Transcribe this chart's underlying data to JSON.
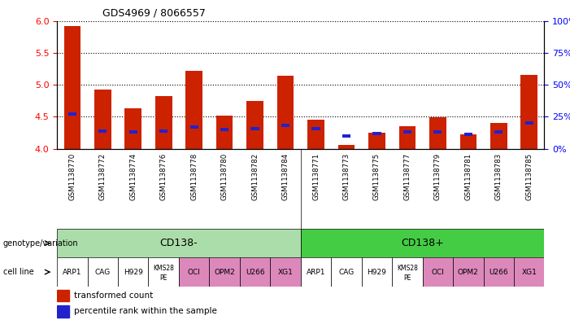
{
  "title": "GDS4969 / 8066557",
  "samples": [
    "GSM1138770",
    "GSM1138772",
    "GSM1138774",
    "GSM1138776",
    "GSM1138778",
    "GSM1138780",
    "GSM1138782",
    "GSM1138784",
    "GSM1138771",
    "GSM1138773",
    "GSM1138775",
    "GSM1138777",
    "GSM1138779",
    "GSM1138781",
    "GSM1138783",
    "GSM1138785"
  ],
  "transformed_count": [
    5.92,
    4.93,
    4.63,
    4.83,
    5.22,
    4.52,
    4.75,
    5.14,
    4.46,
    4.06,
    4.25,
    4.35,
    4.49,
    4.22,
    4.41,
    5.15
  ],
  "percentile_rank": [
    27,
    14,
    13,
    14,
    17,
    15,
    16,
    18,
    16,
    10,
    12,
    13,
    13,
    11,
    13,
    20
  ],
  "y_min": 4.0,
  "y_max": 6.0,
  "y_ticks_left": [
    4.0,
    4.5,
    5.0,
    5.5,
    6.0
  ],
  "y_ticks_right": [
    0,
    25,
    50,
    75,
    100
  ],
  "bar_color_red": "#cc2200",
  "bar_color_blue": "#2222cc",
  "bg_color_gray": "#cccccc",
  "bg_color_light_green": "#aaddaa",
  "bg_color_green": "#44cc44",
  "bg_color_pink": "#dd88bb",
  "genotype_cd138minus": "CD138-",
  "genotype_cd138plus": "CD138+",
  "cell_lines": [
    "ARP1",
    "CAG",
    "H929",
    "KMS28\nPE",
    "OCI",
    "OPM2",
    "U266",
    "XG1"
  ],
  "n_cd138minus": 8,
  "n_cd138plus": 8,
  "legend_red": "transformed count",
  "legend_blue": "percentile rank within the sample",
  "bar_width": 0.55
}
